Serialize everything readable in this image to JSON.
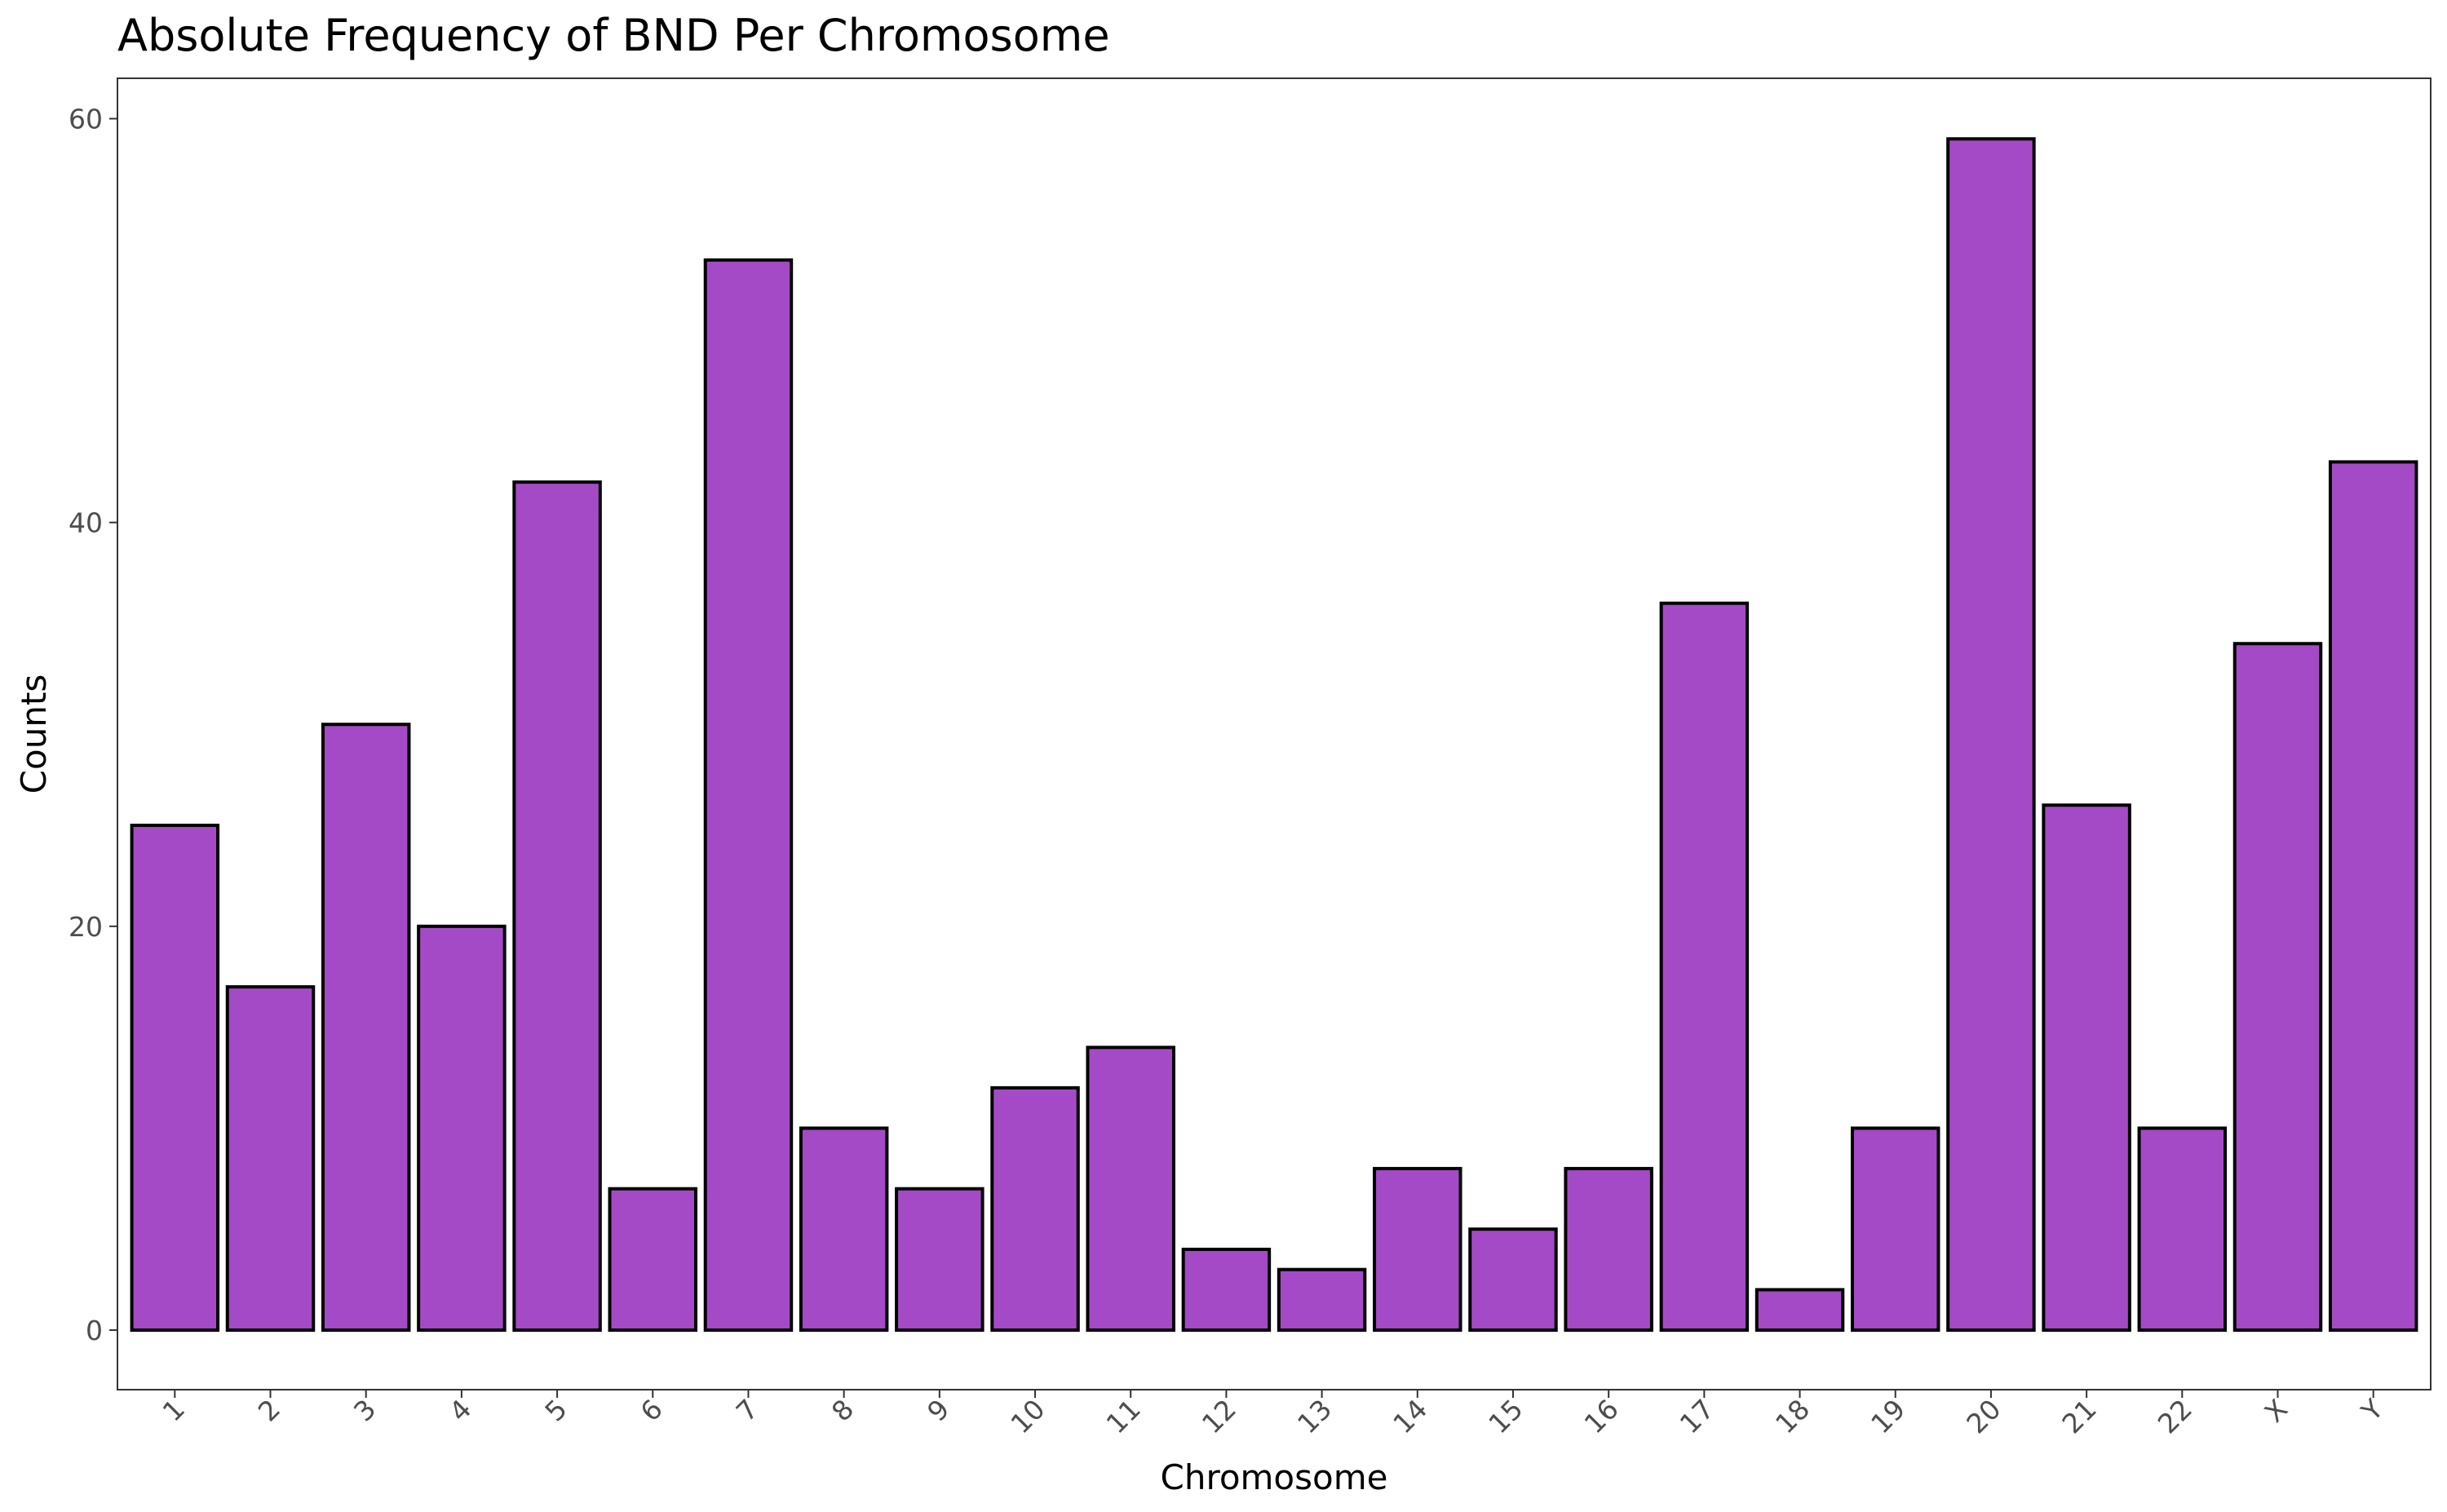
{
  "chart_data": {
    "type": "bar",
    "title": "Absolute Frequency of BND Per Chromosome",
    "xlabel": "Chromosome",
    "ylabel": "Counts",
    "categories": [
      "1",
      "2",
      "3",
      "4",
      "5",
      "6",
      "7",
      "8",
      "9",
      "10",
      "11",
      "12",
      "13",
      "14",
      "15",
      "16",
      "17",
      "18",
      "19",
      "20",
      "21",
      "22",
      "X",
      "Y"
    ],
    "values": [
      25,
      17,
      30,
      20,
      42,
      7,
      53,
      10,
      7,
      12,
      14,
      4,
      3,
      8,
      5,
      8,
      36,
      2,
      10,
      59,
      26,
      10,
      34,
      43
    ],
    "ylim": [
      -2.95,
      62
    ],
    "yticks": [
      0,
      20,
      40,
      60
    ],
    "bar_fill": "#A54AC7",
    "bar_outline": "#000000",
    "grid": false,
    "legend": "none"
  }
}
